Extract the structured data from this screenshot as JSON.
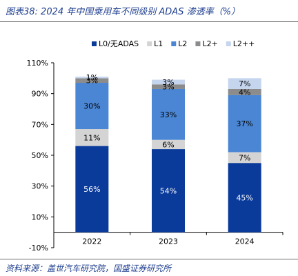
{
  "title": "图表38:  2024 年中国乘用车不同级别 ADAS 渗透率（%）",
  "source": "资料来源：盖世汽车研究院，国盛证券研究所",
  "chart_data": {
    "type": "bar",
    "stacked": true,
    "categories": [
      "2022",
      "2023",
      "2024"
    ],
    "series": [
      {
        "name": "L0/无ADAS",
        "color": "#0a3a9a",
        "label_color": "#ffffff",
        "values": [
          56,
          54,
          45
        ]
      },
      {
        "name": "L1",
        "color": "#d4d4d4",
        "label_color": "#000000",
        "values": [
          11,
          6,
          7
        ]
      },
      {
        "name": "L2",
        "color": "#4a86d4",
        "label_color": "#000000",
        "values": [
          30,
          33,
          37
        ]
      },
      {
        "name": "L2+",
        "color": "#8c8c8c",
        "label_color": "#000000",
        "values": [
          3,
          3,
          4
        ]
      },
      {
        "name": "L2++",
        "color": "#c5d5ee",
        "label_color": "#000000",
        "values": [
          1,
          3,
          7
        ]
      }
    ],
    "ylim": [
      -10,
      110
    ],
    "yticks": [
      "-10%",
      "10%",
      "30%",
      "50%",
      "70%",
      "90%",
      "110%"
    ],
    "ytick_values": [
      -10,
      10,
      30,
      50,
      70,
      90,
      110
    ],
    "legend_position": "top",
    "grid": false
  }
}
